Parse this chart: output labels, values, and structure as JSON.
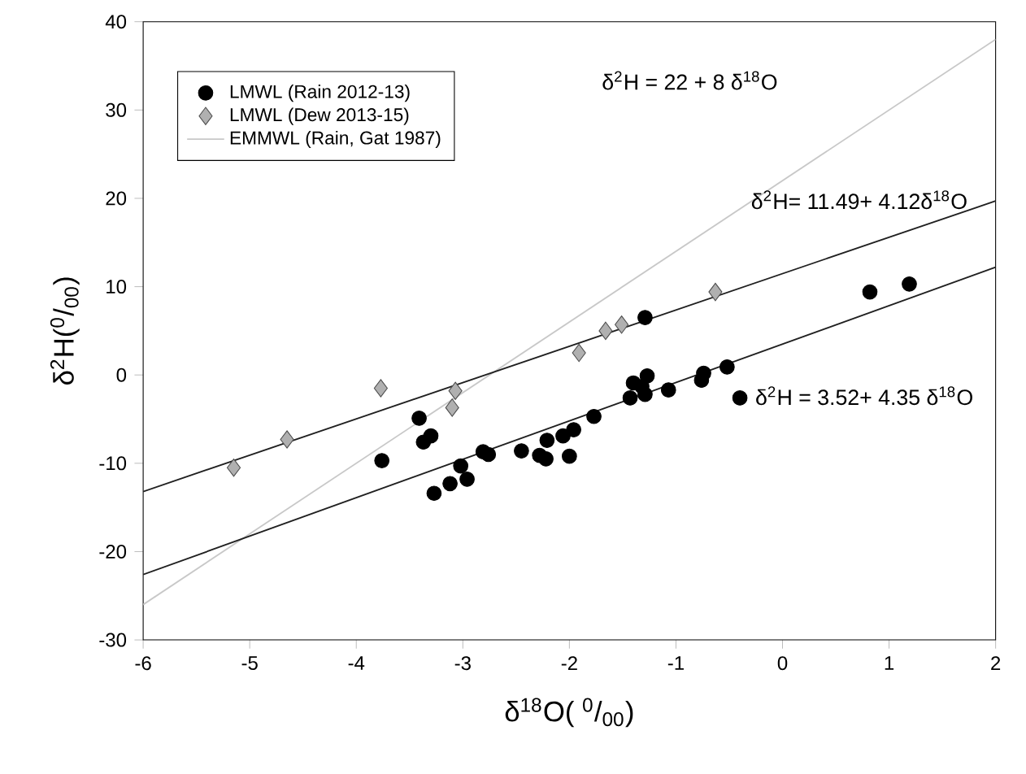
{
  "chart_data": {
    "type": "scatter",
    "xlabel": "δ$^{18}$O( $^{0}$/$_{00}$)",
    "ylabel": "δ$^{2}$H($^{0}$/$_{00}$)",
    "xlim": [
      -6,
      2
    ],
    "ylim": [
      -30,
      40
    ],
    "xticks": [
      -6,
      -5,
      -4,
      -3,
      -2,
      -1,
      0,
      1,
      2
    ],
    "yticks": [
      -30,
      -20,
      -10,
      0,
      10,
      20,
      30,
      40
    ],
    "grid": false,
    "legend": "top left",
    "series": [
      {
        "name": "LMWL (Rain 2012-13)",
        "marker": "circle",
        "color": "#000000",
        "x": [
          -3.76,
          -3.41,
          -3.37,
          -3.3,
          -3.27,
          -3.12,
          -3.02,
          -2.96,
          -2.81,
          -2.76,
          -2.45,
          -2.28,
          -2.22,
          -2.21,
          -2.06,
          -2.0,
          -1.96,
          -1.77,
          -1.43,
          -1.4,
          -1.32,
          -1.27,
          -1.29,
          -1.29,
          -1.07,
          -0.76,
          -0.74,
          -0.52,
          -0.4,
          0.82,
          1.19
        ],
        "values": [
          -9.7,
          -4.9,
          -7.6,
          -6.9,
          -13.4,
          -12.3,
          -10.3,
          -11.8,
          -8.7,
          -9.0,
          -8.6,
          -9.1,
          -9.5,
          -7.4,
          -6.9,
          -9.2,
          -6.2,
          -4.7,
          -2.6,
          -0.9,
          -1.3,
          -0.1,
          -2.2,
          6.5,
          -1.7,
          -0.6,
          0.2,
          0.9,
          -2.6,
          9.4,
          10.3
        ]
      },
      {
        "name": "LMWL (Dew 2013-15)",
        "marker": "diamond",
        "color": "#b0b0b0",
        "x": [
          -5.15,
          -4.65,
          -3.77,
          -3.1,
          -3.07,
          -1.91,
          -1.66,
          -1.51,
          -0.63
        ],
        "values": [
          -10.5,
          -7.3,
          -1.5,
          -3.7,
          -1.8,
          2.5,
          5.0,
          5.7,
          9.4
        ]
      },
      {
        "name": "EMMWL (Rain, Gat 1987)",
        "type": "line",
        "marker": "none",
        "color": "#c8c8c8",
        "x": [
          -6,
          2
        ],
        "values": [
          -26,
          38
        ]
      },
      {
        "type": "line",
        "marker": "none",
        "color": "#202020",
        "x": [
          -6,
          2
        ],
        "values": [
          -13.2,
          19.7
        ]
      },
      {
        "type": "line",
        "marker": "none",
        "color": "#202020",
        "x": [
          -6,
          2
        ],
        "values": [
          -22.6,
          12.2
        ]
      }
    ],
    "annotations": [
      "δ$^{2}$H = 22 + 8  δ$^{18}$O",
      "δ$^{2}$H= 11.49+ 4.12δ$^{18}$O",
      "δ$^{2}$H = 3.52+ 4.35  δ$^{18}$O"
    ]
  }
}
